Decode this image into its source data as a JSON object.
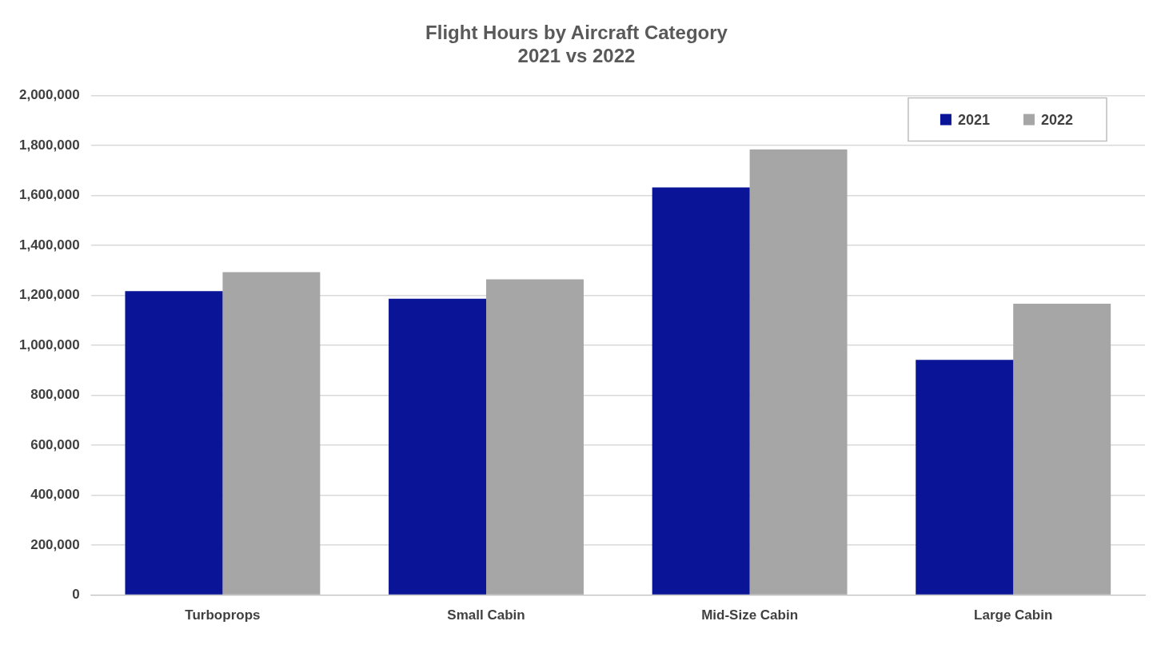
{
  "chart_data": {
    "type": "bar",
    "title": "Flight Hours by Aircraft Category",
    "subtitle": "2021 vs 2022",
    "categories": [
      "Turboprops",
      "Small Cabin",
      "Mid-Size Cabin",
      "Large Cabin"
    ],
    "series": [
      {
        "name": "2021",
        "color": "#0a1496",
        "values": [
          1217000,
          1187000,
          1632000,
          942000
        ]
      },
      {
        "name": "2022",
        "color": "#a6a6a6",
        "values": [
          1293000,
          1264000,
          1784000,
          1167000
        ]
      }
    ],
    "ylim": [
      0,
      2000000
    ],
    "yticks": [
      0,
      {
        "value": 200000,
        "label": "200,000"
      },
      {
        "value": 400000,
        "label": "400,000"
      },
      {
        "value": 600000,
        "label": "600,000"
      },
      {
        "value": 800000,
        "label": "800,000"
      },
      {
        "value": 1000000,
        "label": "1,000,000"
      },
      {
        "value": 1200000,
        "label": "1,200,000"
      },
      {
        "value": 1400000,
        "label": "1,400,000"
      },
      {
        "value": 1600000,
        "label": "1,600,000"
      },
      {
        "value": 1800000,
        "label": "1,800,000"
      },
      {
        "value": 2000000,
        "label": "2,000,000"
      }
    ],
    "grid": "y",
    "legend": "top right"
  }
}
